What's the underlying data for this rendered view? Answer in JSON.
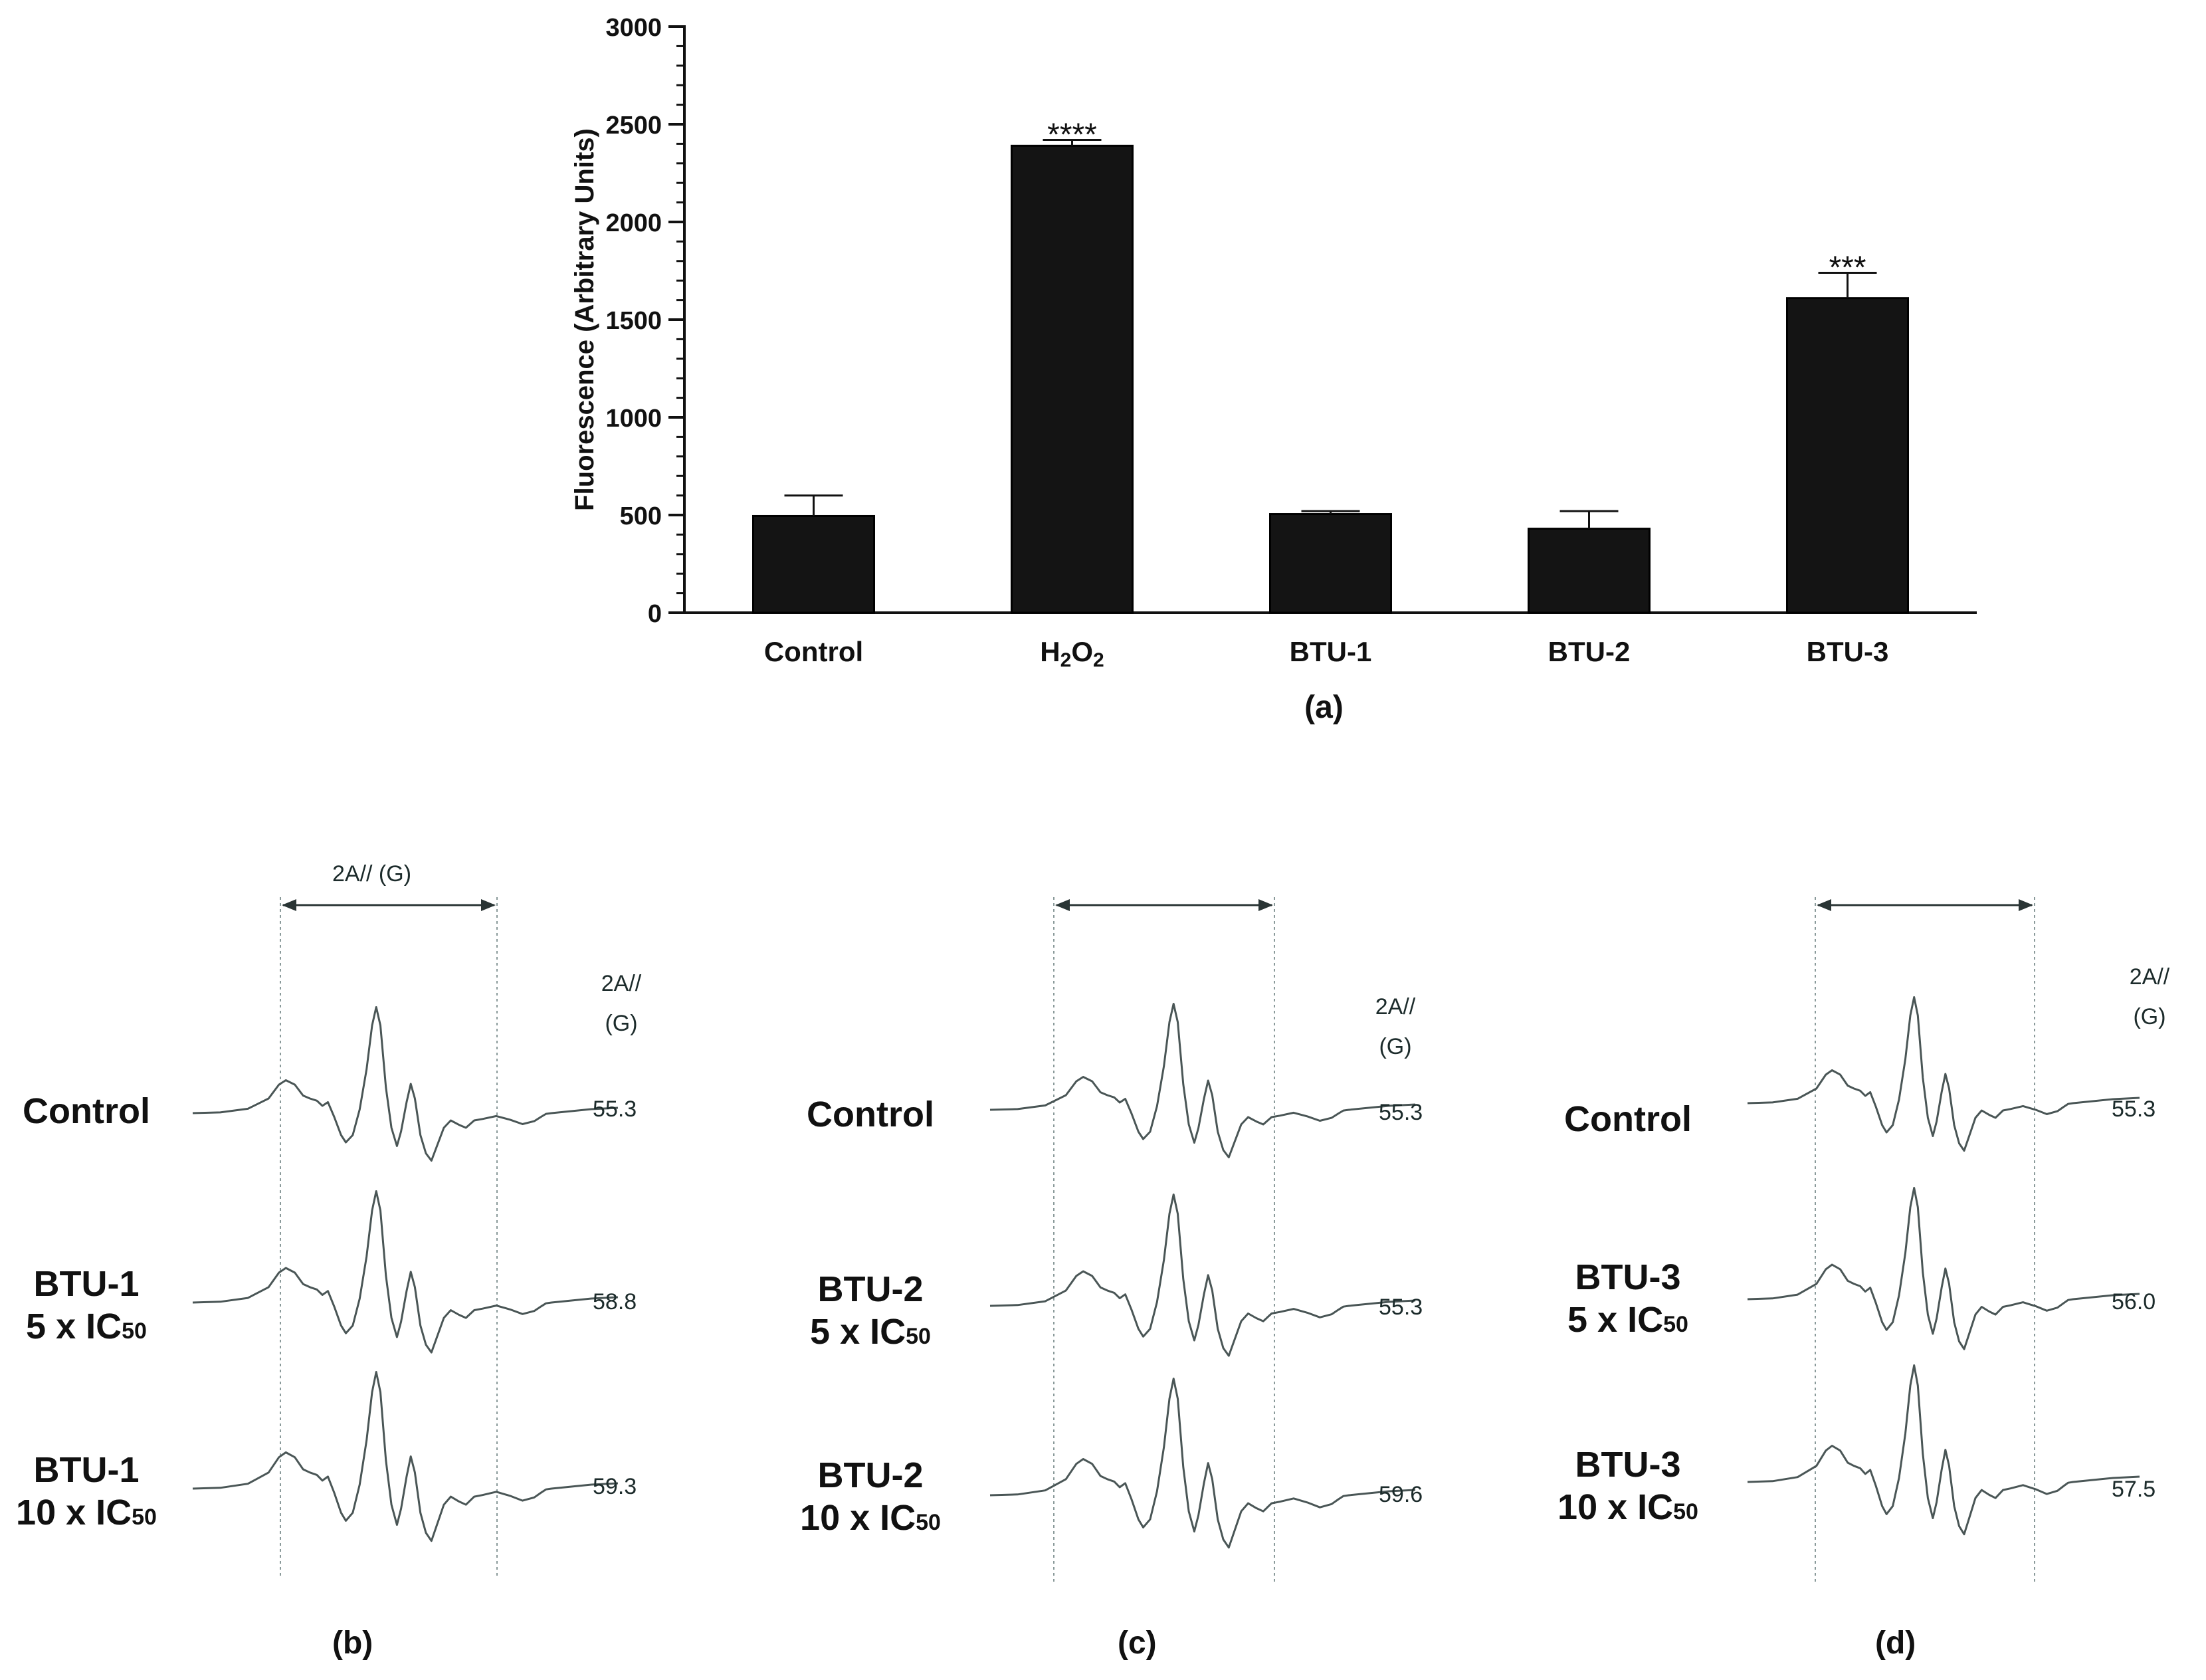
{
  "chart_data": {
    "type": "bar",
    "title": "",
    "xlabel": "",
    "ylabel": "Fluorescence (Arbitrary Units)",
    "ylim": [
      0,
      3000
    ],
    "yticks": [
      0,
      500,
      1000,
      1500,
      2000,
      2500,
      3000
    ],
    "categories": [
      "Control",
      "H2O2",
      "BTU-1",
      "BTU-2",
      "BTU-3"
    ],
    "values": [
      495,
      2390,
      505,
      430,
      1610
    ],
    "errors": [
      105,
      30,
      15,
      90,
      130
    ],
    "significance": [
      "",
      "****",
      "",
      "",
      "***"
    ],
    "bar_color": "#141414",
    "panel_label": "(a)"
  },
  "epr": {
    "dimension_label": "2A// (G)",
    "unit_label_top": "2A//",
    "unit_label_bottom": "(G)",
    "trace_color": "#4a5656",
    "panels": [
      {
        "letter": "(b)",
        "samples": [
          {
            "name": "Control",
            "dose": "",
            "value": "55.3"
          },
          {
            "name": "BTU-1",
            "dose": "5 x IC50",
            "value": "58.8"
          },
          {
            "name": "BTU-1",
            "dose": "10 x IC50",
            "value": "59.3"
          }
        ]
      },
      {
        "letter": "(c)",
        "samples": [
          {
            "name": "Control",
            "dose": "",
            "value": "55.3"
          },
          {
            "name": "BTU-2",
            "dose": "5 x IC50",
            "value": "55.3"
          },
          {
            "name": "BTU-2",
            "dose": "10 x IC50",
            "value": "59.6"
          }
        ]
      },
      {
        "letter": "(d)",
        "samples": [
          {
            "name": "Control",
            "dose": "",
            "value": "55.3"
          },
          {
            "name": "BTU-3",
            "dose": "5 x IC50",
            "value": "56.0"
          },
          {
            "name": "BTU-3",
            "dose": "10 x IC50",
            "value": "57.5"
          }
        ]
      }
    ]
  }
}
